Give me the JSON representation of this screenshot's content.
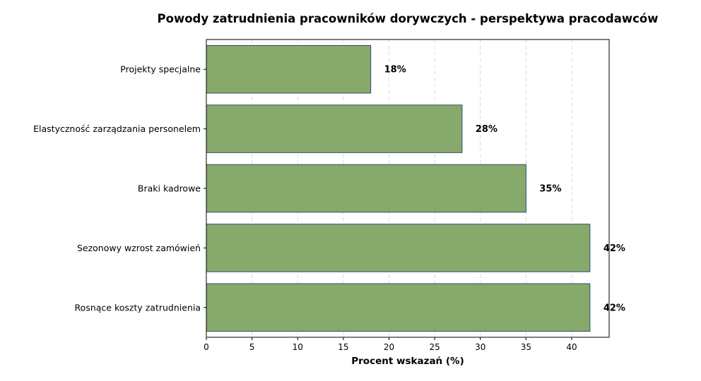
{
  "chart_data": {
    "type": "bar",
    "orientation": "horizontal",
    "title": "Powody zatrudnienia pracowników dorywczych - perspektywa pracodawców",
    "xlabel": "Procent wskazań (%)",
    "ylabel": "",
    "xlim": [
      0,
      44.1
    ],
    "xticks": [
      0,
      5,
      10,
      15,
      20,
      25,
      30,
      35,
      40
    ],
    "grid": "x-dashed",
    "categories": [
      "Projekty specjalne",
      "Elastyczność zarządzania personelem",
      "Braki kadrowe",
      "Sezonowy wzrost zamówień",
      "Rosnące koszty zatrudnienia"
    ],
    "values": [
      18,
      28,
      35,
      42,
      42
    ],
    "value_labels": [
      "18%",
      "28%",
      "35%",
      "42%",
      "42%"
    ],
    "colors": {
      "bar_fill": "#87a96b",
      "bar_edge": "#2f4f6f",
      "axis": "#000000"
    }
  }
}
